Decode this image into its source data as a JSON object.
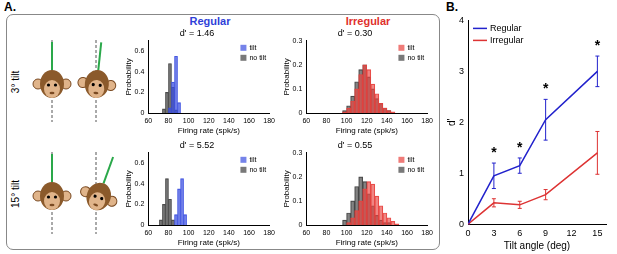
{
  "panels": {
    "A": {
      "label": "A.",
      "rows": [
        "3° tilt",
        "15° tilt"
      ],
      "columns": [
        {
          "text": "Regular",
          "color": "#2f3fd8"
        },
        {
          "text": "Irregular",
          "color": "#e0302c"
        }
      ]
    },
    "B": {
      "label": "B."
    }
  },
  "chart_data": [
    {
      "type": "histogram",
      "title": "d' = 1.46",
      "bins": [
        74,
        77,
        80,
        83,
        86,
        89,
        92,
        95
      ],
      "series": [
        {
          "name": "tilt",
          "color": "#3b4fe0",
          "values": [
            0,
            0,
            0.05,
            0.3,
            0.55,
            0.1,
            0
          ]
        },
        {
          "name": "no tilt",
          "color": "#404040",
          "values": [
            0.04,
            0.2,
            0.48,
            0.25,
            0.03,
            0,
            0
          ]
        }
      ],
      "xlim": [
        60,
        180
      ],
      "xticks": [
        60,
        80,
        100,
        120,
        140,
        160,
        180
      ],
      "ylim": [
        0,
        0.7
      ],
      "yticks": [
        0,
        0.2,
        0.4,
        0.6
      ],
      "x_label": "Firing rate (spk/s)",
      "y_label": "Probability",
      "legend": "upper right",
      "grid": false
    },
    {
      "type": "histogram",
      "title": "d' = 0.30",
      "bins": [
        96,
        100,
        104,
        108,
        112,
        116,
        120,
        124,
        128,
        132,
        136,
        140,
        144,
        148,
        152,
        156
      ],
      "series": [
        {
          "name": "tilt",
          "color": "#e8433f",
          "values": [
            0.005,
            0.02,
            0.05,
            0.1,
            0.16,
            0.2,
            0.18,
            0.12,
            0.08,
            0.04,
            0.02,
            0.01,
            0.005,
            0,
            0
          ]
        },
        {
          "name": "no tilt",
          "color": "#404040",
          "values": [
            0.01,
            0.03,
            0.07,
            0.13,
            0.18,
            0.2,
            0.15,
            0.1,
            0.06,
            0.04,
            0.02,
            0.01,
            0,
            0,
            0
          ]
        }
      ],
      "xlim": [
        60,
        180
      ],
      "xticks": [
        60,
        80,
        100,
        120,
        140,
        160,
        180
      ],
      "ylim": [
        0,
        0.3
      ],
      "yticks": [
        0,
        0.1,
        0.2,
        0.3
      ],
      "x_label": "Firing rate (spk/s)",
      "y_label": "Probability",
      "legend": "upper right",
      "grid": false
    },
    {
      "type": "histogram",
      "title": "d' = 5.52",
      "bins": [
        71,
        74,
        77,
        80,
        83,
        86,
        89,
        92,
        95,
        98,
        101
      ],
      "series": [
        {
          "name": "tilt",
          "color": "#3b4fe0",
          "values": [
            0,
            0,
            0,
            0,
            0,
            0.1,
            0.35,
            0.45,
            0.1,
            0
          ]
        },
        {
          "name": "no tilt",
          "color": "#404040",
          "values": [
            0.05,
            0.2,
            0.45,
            0.25,
            0.05,
            0,
            0,
            0,
            0,
            0
          ]
        }
      ],
      "xlim": [
        60,
        180
      ],
      "xticks": [
        60,
        80,
        100,
        120,
        140,
        160,
        180
      ],
      "ylim": [
        0,
        0.7
      ],
      "yticks": [
        0,
        0.2,
        0.4,
        0.6
      ],
      "x_label": "Firing rate (spk/s)",
      "y_label": "Probability",
      "legend": "upper right",
      "grid": false
    },
    {
      "type": "histogram",
      "title": "d' = 0.55",
      "bins": [
        96,
        100,
        104,
        108,
        112,
        116,
        120,
        124,
        128,
        132,
        136,
        140,
        144,
        148,
        152,
        156
      ],
      "series": [
        {
          "name": "tilt",
          "color": "#e8433f",
          "values": [
            0,
            0.01,
            0.03,
            0.06,
            0.1,
            0.15,
            0.18,
            0.17,
            0.12,
            0.08,
            0.05,
            0.03,
            0.015,
            0.005,
            0
          ]
        },
        {
          "name": "no tilt",
          "color": "#404040",
          "values": [
            0.02,
            0.05,
            0.1,
            0.16,
            0.2,
            0.18,
            0.13,
            0.08,
            0.04,
            0.02,
            0.01,
            0.01,
            0,
            0,
            0
          ]
        }
      ],
      "xlim": [
        60,
        180
      ],
      "xticks": [
        60,
        80,
        100,
        120,
        140,
        160,
        180
      ],
      "ylim": [
        0,
        0.3
      ],
      "yticks": [
        0,
        0.1,
        0.2,
        0.3
      ],
      "x_label": "Firing rate (spk/s)",
      "y_label": "Probability",
      "legend": "upper right",
      "grid": false
    },
    {
      "type": "line",
      "x": [
        0,
        3,
        6,
        9,
        15
      ],
      "series": [
        {
          "name": "Regular",
          "color": "#2222cc",
          "values": [
            0,
            0.95,
            1.15,
            2.05,
            3.0
          ],
          "errors": [
            0,
            0.25,
            0.15,
            0.4,
            0.3
          ]
        },
        {
          "name": "Irregular",
          "color": "#dd3333",
          "values": [
            0,
            0.42,
            0.38,
            0.58,
            1.4
          ],
          "errors": [
            0,
            0.08,
            0.07,
            0.1,
            0.42
          ]
        }
      ],
      "xlim": [
        0,
        16
      ],
      "xticks": [
        0,
        3,
        6,
        9,
        12,
        15
      ],
      "ylim": [
        0,
        4
      ],
      "yticks": [
        0,
        1,
        2,
        3,
        4
      ],
      "x_label": "Tilt angle (deg)",
      "y_label": "d'",
      "legend": "upper left",
      "grid": false,
      "annotations": [
        {
          "text": "*",
          "x": 3,
          "y": 1.4
        },
        {
          "text": "*",
          "x": 6,
          "y": 1.5
        },
        {
          "text": "*",
          "x": 9,
          "y": 2.65
        },
        {
          "text": "*",
          "x": 15,
          "y": 3.5
        }
      ]
    }
  ]
}
